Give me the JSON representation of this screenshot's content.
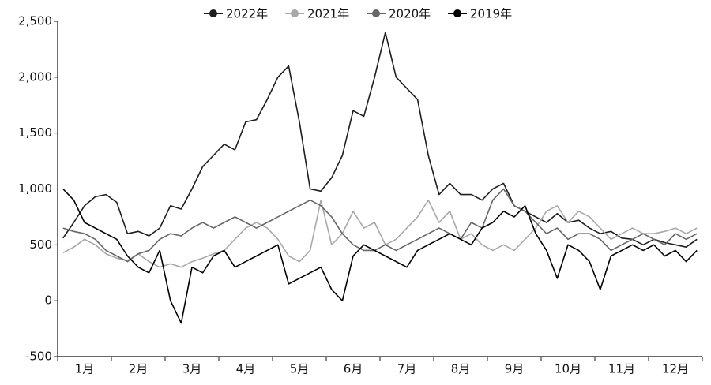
{
  "chart_data": {
    "type": "line",
    "categories": [
      null,
      null,
      "1月",
      null,
      null,
      null,
      null,
      "2月",
      null,
      null,
      null,
      null,
      "3月",
      null,
      null,
      null,
      null,
      "4月",
      null,
      null,
      null,
      null,
      "5月",
      null,
      null,
      null,
      null,
      "6月",
      null,
      null,
      null,
      null,
      "7月",
      null,
      null,
      null,
      null,
      "8月",
      null,
      null,
      null,
      null,
      "9月",
      null,
      null,
      null,
      null,
      "10月",
      null,
      null,
      null,
      null,
      "11月",
      null,
      null,
      null,
      null,
      "12月",
      null,
      null
    ],
    "ylim": [
      -500,
      2500
    ],
    "yticks": [
      -500,
      0,
      500,
      {
        "value": 1000,
        "label": "1,000"
      },
      {
        "value": 1500,
        "label": "1,500"
      },
      {
        "value": 2000,
        "label": "2,000"
      },
      {
        "value": 2500,
        "label": "2,500"
      }
    ],
    "series": [
      {
        "name": "2022年",
        "color": "#1e1e1e",
        "values": [
          560,
          700,
          850,
          930,
          950,
          880,
          600,
          620,
          580,
          650,
          850,
          820,
          1000,
          1200,
          1300,
          1400,
          1350,
          1600,
          1620,
          1800,
          2000,
          2100,
          1600,
          1000,
          980,
          1100,
          1300,
          1700,
          1650,
          2000,
          2400,
          2000,
          1900,
          1800,
          1300,
          950,
          1050,
          950,
          950,
          900,
          1000,
          1050,
          850,
          800,
          750,
          700,
          780,
          700,
          720,
          650,
          600,
          620,
          560,
          550,
          500,
          550,
          520,
          500,
          480,
          550
        ]
      },
      {
        "name": "2021年",
        "color": "#a8a8a8",
        "values": [
          430,
          480,
          550,
          500,
          420,
          380,
          360,
          420,
          350,
          300,
          330,
          300,
          350,
          380,
          420,
          450,
          550,
          650,
          700,
          650,
          550,
          400,
          350,
          450,
          900,
          500,
          600,
          800,
          650,
          700,
          500,
          550,
          650,
          750,
          900,
          700,
          800,
          550,
          600,
          500,
          450,
          500,
          450,
          550,
          650,
          800,
          850,
          700,
          800,
          750,
          650,
          550,
          600,
          650,
          600,
          600,
          620,
          650,
          600,
          650
        ]
      },
      {
        "name": "2020年",
        "color": "#666666",
        "values": [
          650,
          620,
          600,
          550,
          450,
          400,
          350,
          420,
          450,
          550,
          600,
          580,
          650,
          700,
          650,
          700,
          750,
          700,
          650,
          700,
          750,
          800,
          850,
          900,
          850,
          750,
          600,
          500,
          450,
          450,
          500,
          450,
          500,
          550,
          600,
          650,
          600,
          550,
          700,
          650,
          900,
          1000,
          850,
          800,
          700,
          600,
          650,
          550,
          600,
          600,
          550,
          450,
          500,
          550,
          600,
          550,
          500,
          600,
          550,
          600
        ]
      },
      {
        "name": "2019年",
        "color": "#000000",
        "values": [
          1000,
          900,
          700,
          650,
          600,
          550,
          400,
          300,
          250,
          450,
          0,
          -200,
          300,
          250,
          400,
          450,
          300,
          350,
          400,
          450,
          500,
          150,
          200,
          250,
          300,
          100,
          0,
          400,
          500,
          450,
          400,
          350,
          300,
          450,
          500,
          550,
          600,
          550,
          500,
          650,
          700,
          800,
          750,
          850,
          600,
          450,
          200,
          500,
          450,
          350,
          100,
          400,
          450,
          500,
          450,
          500,
          400,
          450,
          350,
          450
        ]
      }
    ]
  }
}
